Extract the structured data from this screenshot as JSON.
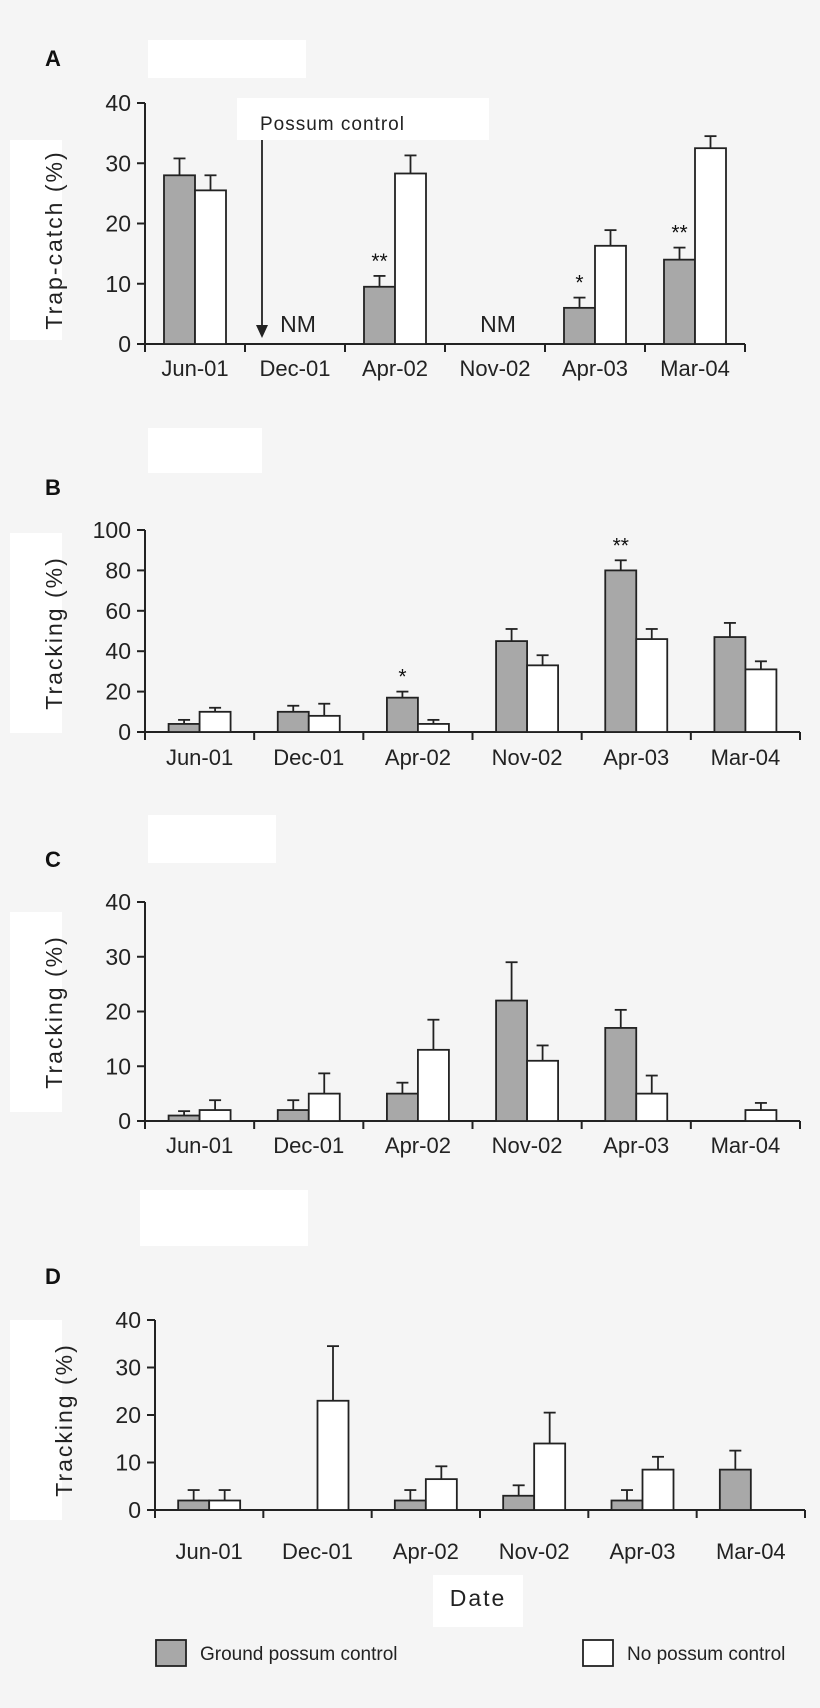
{
  "chart_data": [
    {
      "panel": "A",
      "type": "bar",
      "ylabel": "Trap-catch (%)",
      "xlabel": "",
      "ylim": [
        0,
        40
      ],
      "yticks": [
        "0",
        "10",
        "20",
        "30",
        "40"
      ],
      "categories": [
        "Jun-01",
        "Dec-01",
        "Apr-02",
        "Nov-02",
        "Apr-03",
        "Mar-04"
      ],
      "series": [
        {
          "name": "Ground possum control",
          "values": [
            28,
            null,
            9.5,
            null,
            6,
            14
          ],
          "errors": [
            2.8,
            null,
            1.8,
            null,
            1.7,
            2.0
          ],
          "color": "#a8a8a8"
        },
        {
          "name": "No possum control",
          "values": [
            25.5,
            null,
            28.3,
            null,
            16.3,
            32.5
          ],
          "errors": [
            2.5,
            null,
            3.0,
            null,
            2.6,
            2.0
          ],
          "color": "#ffffff"
        }
      ],
      "annotations": [
        {
          "category": "Apr-02",
          "text": "**"
        },
        {
          "category": "Apr-03",
          "text": "*"
        },
        {
          "category": "Mar-04",
          "text": "**"
        },
        {
          "category": "Dec-01",
          "text": "NM"
        },
        {
          "category": "Nov-02",
          "text": "NM"
        }
      ],
      "arrow_label": "Possum control"
    },
    {
      "panel": "B",
      "type": "bar",
      "ylabel": "Tracking (%)",
      "xlabel": "",
      "ylim": [
        0,
        100
      ],
      "yticks": [
        "0",
        "20",
        "40",
        "60",
        "80",
        "100"
      ],
      "categories": [
        "Jun-01",
        "Dec-01",
        "Apr-02",
        "Nov-02",
        "Apr-03",
        "Mar-04"
      ],
      "series": [
        {
          "name": "Ground possum control",
          "values": [
            4,
            10,
            17,
            45,
            80,
            47
          ],
          "errors": [
            2,
            3,
            3,
            6,
            5,
            7
          ],
          "color": "#a8a8a8"
        },
        {
          "name": "No possum control",
          "values": [
            10,
            8,
            4,
            33,
            46,
            31
          ],
          "errors": [
            2,
            6,
            2,
            5,
            5,
            4
          ],
          "color": "#ffffff"
        }
      ],
      "annotations": [
        {
          "category": "Apr-02",
          "text": "*"
        },
        {
          "category": "Apr-03",
          "text": "**"
        }
      ]
    },
    {
      "panel": "C",
      "type": "bar",
      "ylabel": "Tracking (%)",
      "xlabel": "",
      "ylim": [
        0,
        40
      ],
      "yticks": [
        "0",
        "10",
        "20",
        "30",
        "40"
      ],
      "categories": [
        "Jun-01",
        "Dec-01",
        "Apr-02",
        "Nov-02",
        "Apr-03",
        "Mar-04"
      ],
      "series": [
        {
          "name": "Ground possum control",
          "values": [
            1,
            2,
            5,
            22,
            17,
            0
          ],
          "errors": [
            0.8,
            1.8,
            2.0,
            7.0,
            3.3,
            0
          ],
          "color": "#a8a8a8"
        },
        {
          "name": "No possum control",
          "values": [
            2,
            5,
            13,
            11,
            5,
            2
          ],
          "errors": [
            1.8,
            3.7,
            5.5,
            2.8,
            3.3,
            1.3
          ],
          "color": "#ffffff"
        }
      ],
      "annotations": []
    },
    {
      "panel": "D",
      "type": "bar",
      "ylabel": "Tracking (%)",
      "xlabel": "Date",
      "ylim": [
        0,
        40
      ],
      "yticks": [
        "0",
        "10",
        "20",
        "30",
        "40"
      ],
      "categories": [
        "Jun-01",
        "Dec-01",
        "Apr-02",
        "Nov-02",
        "Apr-03",
        "Mar-04"
      ],
      "series": [
        {
          "name": "Ground possum control",
          "values": [
            2,
            0,
            2,
            3,
            2,
            8.5
          ],
          "errors": [
            2.2,
            0,
            2.2,
            2.2,
            2.2,
            4.0
          ],
          "color": "#a8a8a8"
        },
        {
          "name": "No possum control",
          "values": [
            2,
            23,
            6.5,
            14,
            8.5,
            0
          ],
          "errors": [
            2.2,
            11.5,
            2.7,
            6.5,
            2.7,
            0
          ],
          "color": "#ffffff"
        }
      ],
      "annotations": []
    }
  ],
  "legend": {
    "items": [
      {
        "label": "Ground possum control",
        "color": "#a8a8a8"
      },
      {
        "label": "No possum control",
        "color": "#ffffff"
      }
    ]
  }
}
